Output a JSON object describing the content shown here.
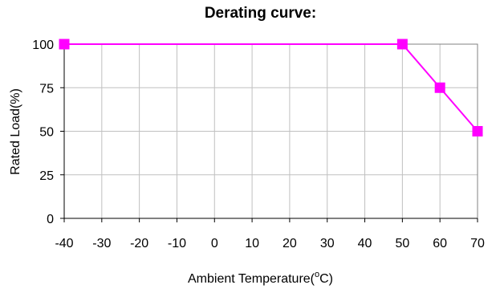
{
  "chart_data": {
    "type": "line",
    "title": "Derating curve:",
    "xlabel": "Ambient Temperature(",
    "xlabel_degree": "o",
    "xlabel_unit": "C)",
    "ylabel": "Rated Load(%)",
    "xlim": [
      -40,
      70
    ],
    "ylim": [
      0,
      100
    ],
    "xticks": [
      -40,
      -30,
      -20,
      -10,
      0,
      10,
      20,
      30,
      40,
      50,
      60,
      70
    ],
    "yticks": [
      0,
      25,
      50,
      75,
      100
    ],
    "grid": true,
    "legend": "none",
    "series": [
      {
        "color": "#ff00ff",
        "marker": "square",
        "x": [
          -40,
          50,
          60,
          70
        ],
        "y": [
          100,
          100,
          75,
          50
        ]
      }
    ]
  }
}
